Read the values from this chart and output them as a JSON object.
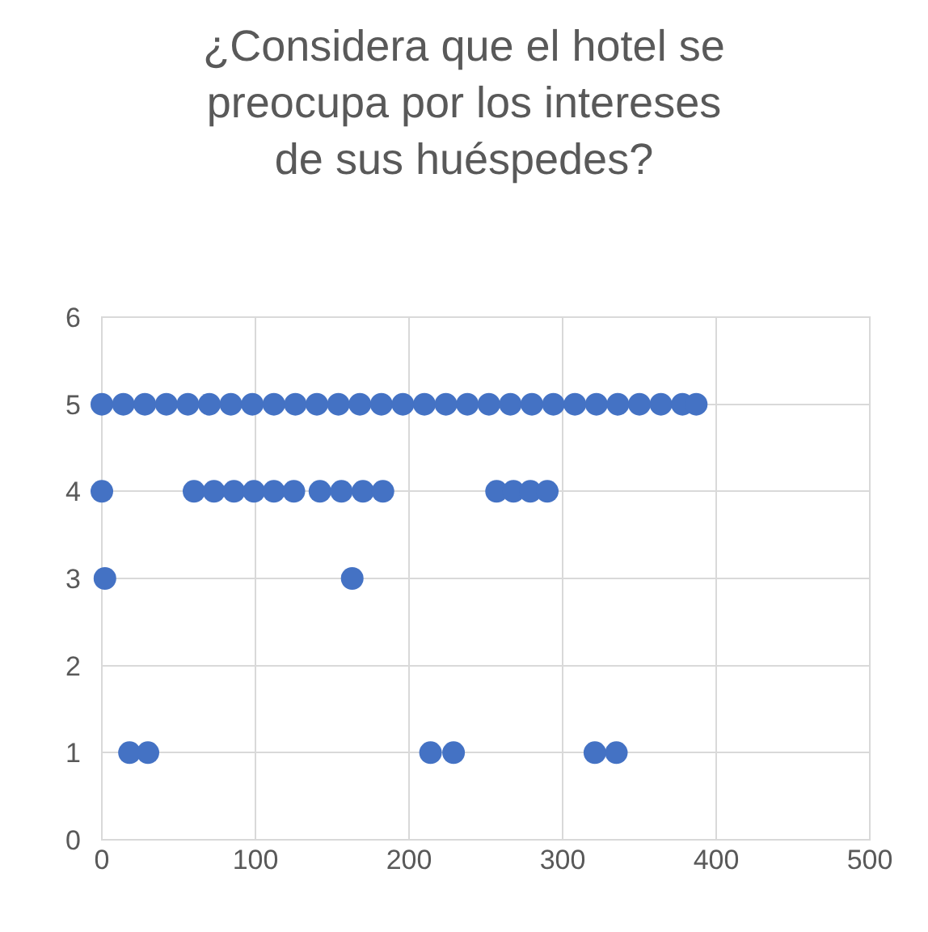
{
  "chart_data": {
    "type": "scatter",
    "title": "¿Considera que el hotel se preocupa por los intereses de sus huéspedes?",
    "series": [
      {
        "color": "#4472c4",
        "x": [
          0,
          14,
          28,
          42,
          56,
          70,
          84,
          98,
          112,
          126,
          140,
          154,
          168,
          182,
          196,
          210,
          224,
          238,
          252,
          266,
          280,
          294,
          308,
          322,
          336,
          350,
          364,
          378,
          387,
          0,
          60,
          73,
          86,
          99,
          112,
          125,
          142,
          156,
          170,
          183,
          257,
          268,
          279,
          290,
          2,
          163,
          18,
          30,
          214,
          229,
          321,
          335
        ],
        "values": [
          5,
          5,
          5,
          5,
          5,
          5,
          5,
          5,
          5,
          5,
          5,
          5,
          5,
          5,
          5,
          5,
          5,
          5,
          5,
          5,
          5,
          5,
          5,
          5,
          5,
          5,
          5,
          5,
          5,
          4,
          4,
          4,
          4,
          4,
          4,
          4,
          4,
          4,
          4,
          4,
          4,
          4,
          4,
          4,
          3,
          3,
          1,
          1,
          1,
          1,
          1,
          1
        ]
      }
    ],
    "xlim": [
      0,
      500
    ],
    "xticks": [
      0,
      100,
      200,
      300,
      400,
      500
    ],
    "ylim": [
      0,
      6
    ],
    "yticks": [
      0,
      1,
      2,
      3,
      4,
      5,
      6
    ],
    "grid": true,
    "marker": "circle"
  }
}
